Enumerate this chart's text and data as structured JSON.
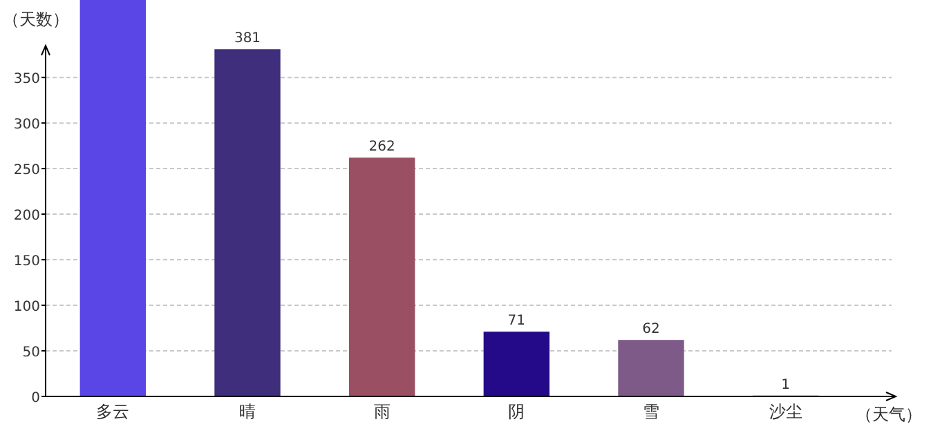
{
  "chart_data": {
    "type": "bar",
    "xlabel": "（天气）",
    "ylabel": "（天数）",
    "categories": [
      "多云",
      "晴",
      "雨",
      "阴",
      "雪",
      "沙尘"
    ],
    "values": [
      435,
      381,
      262,
      71,
      62,
      1
    ],
    "value_labels": [
      null,
      "381",
      "262",
      "71",
      "62",
      "1"
    ],
    "colors": [
      "#5a45e6",
      "#3e2e7c",
      "#9a5062",
      "#240a88",
      "#7e5a88",
      "#3a8a6a"
    ],
    "ylim": [
      0,
      435
    ],
    "yticks": [
      0,
      50,
      100,
      150,
      200,
      250,
      300,
      350
    ],
    "grid": "y"
  }
}
